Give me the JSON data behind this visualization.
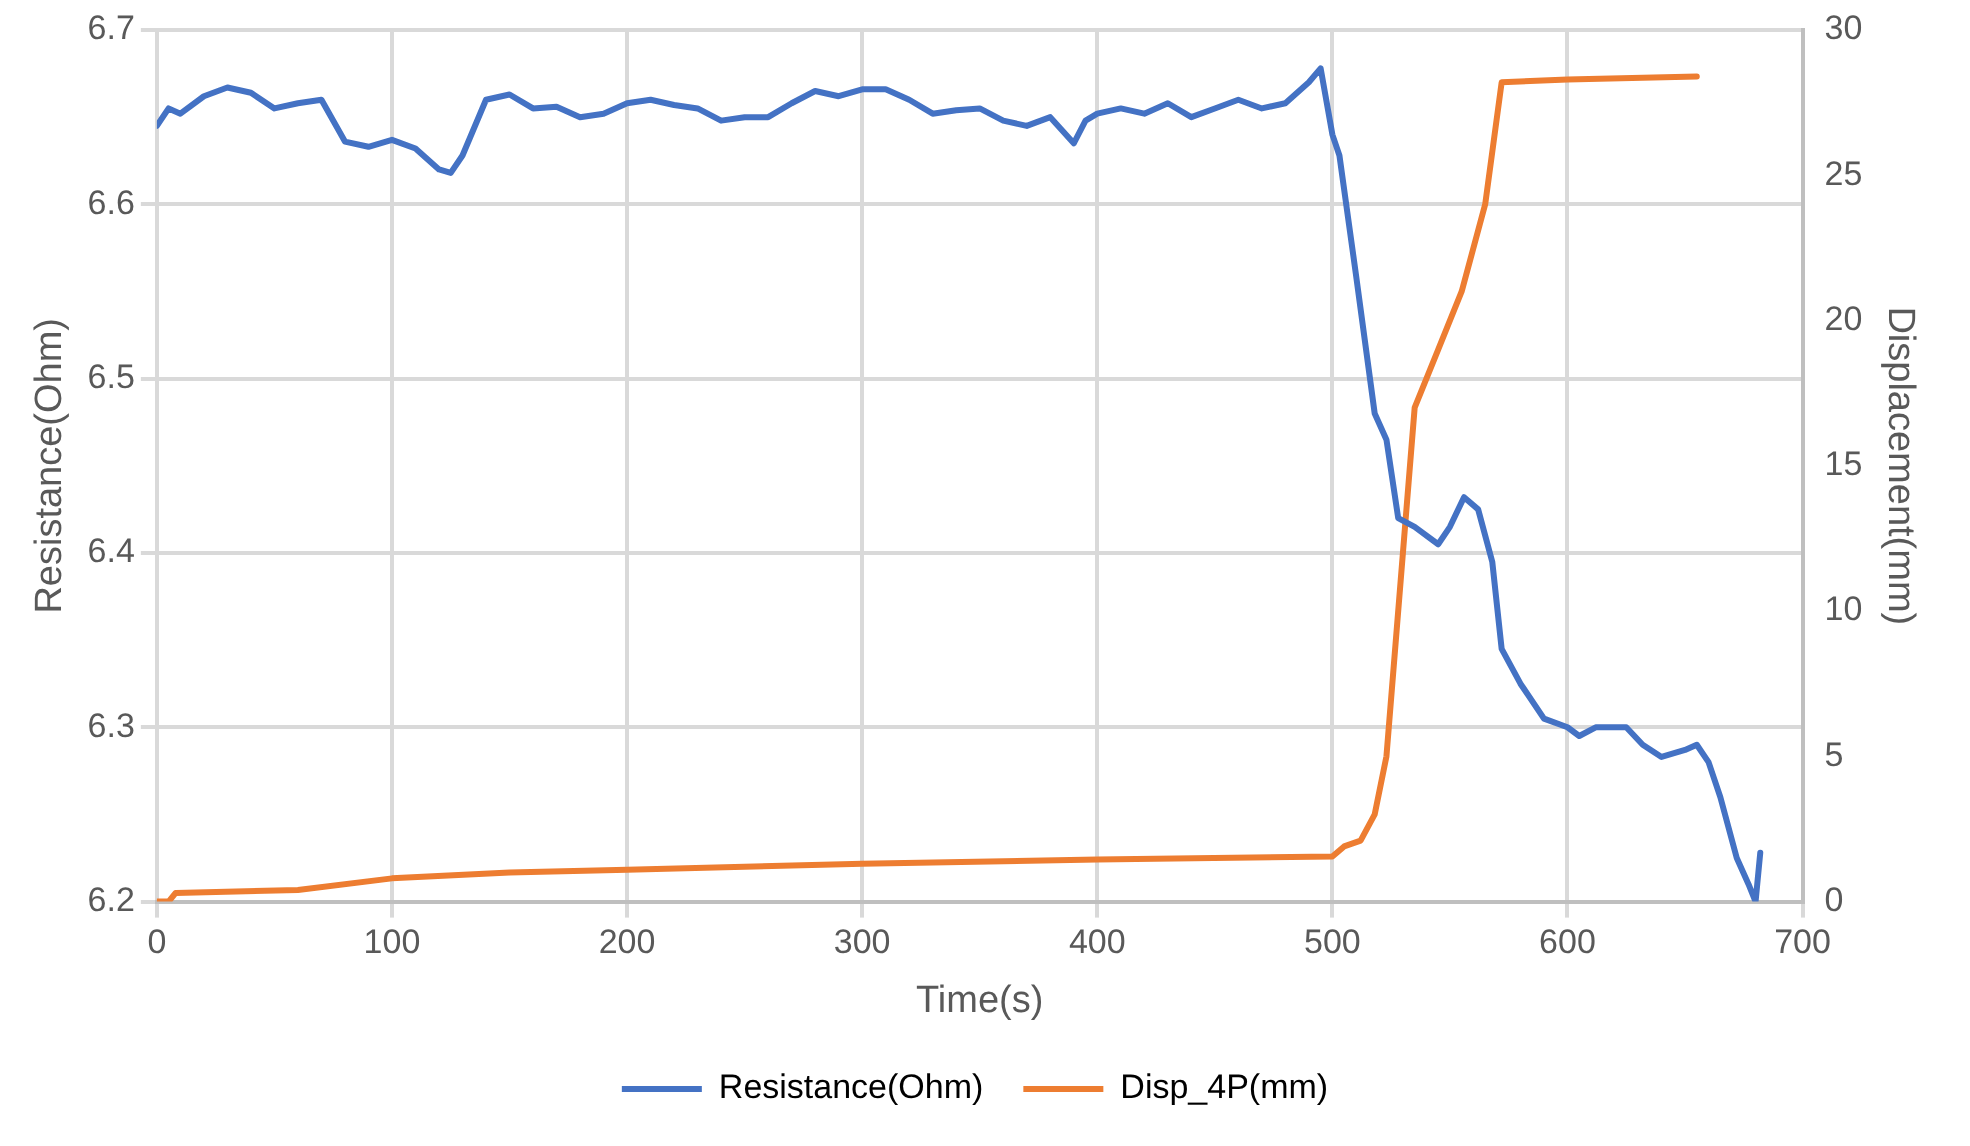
{
  "chart_data": {
    "type": "line",
    "xlabel": "Time(s)",
    "ylabel": "Resistance(Ohm)",
    "y2label": "Displacement(mm)",
    "xlim": [
      0,
      700
    ],
    "xticks": [
      0,
      100,
      200,
      300,
      400,
      500,
      600,
      700
    ],
    "ylim": [
      6.2,
      6.7
    ],
    "yticks": [
      6.2,
      6.3,
      6.4,
      6.5,
      6.6,
      6.7
    ],
    "y2lim": [
      0,
      30
    ],
    "y2ticks": [
      0,
      5,
      10,
      15,
      20,
      25,
      30
    ],
    "grid": true,
    "legend": "bottom",
    "marker": "none",
    "line_style": "solid",
    "series": [
      {
        "name": "Resistance(Ohm)",
        "color": "#4472c4",
        "x": [
          0,
          5,
          10,
          20,
          30,
          40,
          50,
          60,
          70,
          80,
          90,
          100,
          110,
          120,
          125,
          130,
          140,
          150,
          160,
          170,
          180,
          190,
          200,
          210,
          220,
          230,
          240,
          250,
          260,
          270,
          280,
          290,
          300,
          310,
          320,
          330,
          340,
          350,
          360,
          370,
          380,
          390,
          395,
          400,
          410,
          420,
          430,
          440,
          450,
          460,
          470,
          480,
          490,
          495,
          500,
          503,
          510,
          518,
          523,
          528,
          535,
          545,
          550,
          556,
          562,
          568,
          572,
          580,
          590,
          600,
          605,
          612,
          625,
          632,
          640,
          650,
          655,
          660,
          665,
          672,
          677,
          680,
          682
        ],
        "values": [
          6.645,
          6.655,
          6.652,
          6.662,
          6.667,
          6.664,
          6.655,
          6.658,
          6.66,
          6.636,
          6.633,
          6.637,
          6.632,
          6.62,
          6.618,
          6.628,
          6.66,
          6.663,
          6.655,
          6.656,
          6.65,
          6.652,
          6.658,
          6.66,
          6.657,
          6.655,
          6.648,
          6.65,
          6.65,
          6.658,
          6.665,
          6.662,
          6.666,
          6.666,
          6.66,
          6.652,
          6.654,
          6.655,
          6.648,
          6.645,
          6.65,
          6.635,
          6.648,
          6.652,
          6.655,
          6.652,
          6.658,
          6.65,
          6.655,
          6.66,
          6.655,
          6.658,
          6.67,
          6.678,
          6.64,
          6.628,
          6.56,
          6.48,
          6.465,
          6.42,
          6.415,
          6.405,
          6.415,
          6.432,
          6.425,
          6.395,
          6.345,
          6.325,
          6.305,
          6.3,
          6.295,
          6.3,
          6.3,
          6.29,
          6.283,
          6.287,
          6.29,
          6.28,
          6.26,
          6.225,
          6.21,
          6.2,
          6.228
        ]
      },
      {
        "name": "Disp_4P(mm)",
        "color": "#ed7d31",
        "axis": "y2",
        "x": [
          0,
          5,
          8,
          60,
          100,
          150,
          200,
          300,
          400,
          500,
          505,
          512,
          518,
          523,
          530,
          535,
          545,
          555,
          565,
          572,
          600,
          655
        ],
        "values": [
          0,
          0,
          0.3,
          0.4,
          0.8,
          1.0,
          1.1,
          1.3,
          1.45,
          1.55,
          1.9,
          2.1,
          3,
          5,
          12,
          17,
          19,
          21,
          24,
          28.2,
          28.3,
          28.4
        ]
      }
    ]
  }
}
